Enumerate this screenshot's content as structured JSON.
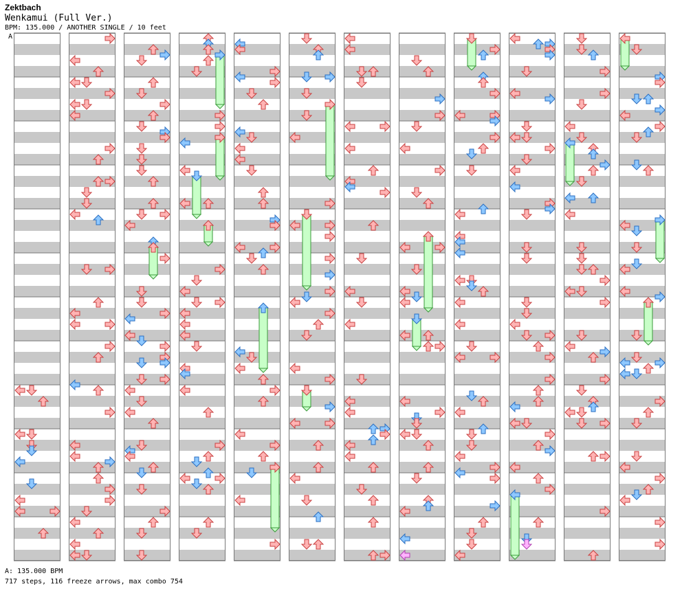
{
  "song": {
    "artist": "Zektbach",
    "title": "Wenkamui (Full Ver.)",
    "meta": "BPM: 135.000 / ANOTHER SINGLE / 10 feet"
  },
  "bpm_marker": "A",
  "footer": {
    "bpm": "A: 135.000 BPM",
    "stats": "717 steps, 116 freeze arrows, max combo 754"
  },
  "colors": {
    "stripe": "#c8c8c8",
    "measure_line": "#777777",
    "red_fill": "#ffb4b4",
    "red_stroke": "#c84040",
    "blue_fill": "#8ec8ff",
    "blue_stroke": "#2a6ec0",
    "freeze_fill": "#c8ffc8",
    "freeze_stroke": "#3a9a3a",
    "shock_fill": "#ffb4ff",
    "shock_stroke": "#b040b0"
  },
  "chart_data": {
    "type": "step-chart",
    "columns": 12,
    "measures_per_column": 12,
    "first_measure_offset": 8,
    "total_steps": 717,
    "freeze_arrows": 116,
    "max_combo": 754,
    "bpm": 135
  }
}
